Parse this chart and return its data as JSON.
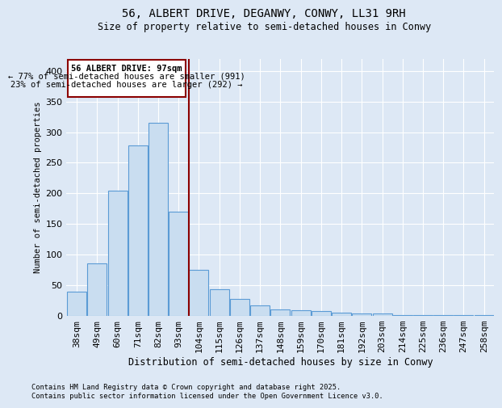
{
  "title1": "56, ALBERT DRIVE, DEGANWY, CONWY, LL31 9RH",
  "title2": "Size of property relative to semi-detached houses in Conwy",
  "xlabel": "Distribution of semi-detached houses by size in Conwy",
  "ylabel": "Number of semi-detached properties",
  "footnote1": "Contains HM Land Registry data © Crown copyright and database right 2025.",
  "footnote2": "Contains public sector information licensed under the Open Government Licence v3.0.",
  "annotation_title": "56 ALBERT DRIVE: 97sqm",
  "annotation_line1": "← 77% of semi-detached houses are smaller (991)",
  "annotation_line2": "23% of semi-detached houses are larger (292) →",
  "bar_labels": [
    "38sqm",
    "49sqm",
    "60sqm",
    "71sqm",
    "82sqm",
    "93sqm",
    "104sqm",
    "115sqm",
    "126sqm",
    "137sqm",
    "148sqm",
    "159sqm",
    "170sqm",
    "181sqm",
    "192sqm",
    "203sqm",
    "214sqm",
    "225sqm",
    "236sqm",
    "247sqm",
    "258sqm"
  ],
  "bar_values": [
    40,
    86,
    204,
    278,
    315,
    170,
    75,
    44,
    28,
    17,
    11,
    9,
    8,
    5,
    4,
    4,
    2,
    2,
    1,
    1,
    1
  ],
  "bar_color": "#c9ddf0",
  "bar_edge_color": "#5b9bd5",
  "vline_x": 5.5,
  "vline_color": "#8b0000",
  "annotation_box_color": "#8b0000",
  "ylim": [
    0,
    420
  ],
  "bg_color": "#dde8f5",
  "plot_bg_color": "#dde8f5",
  "fig_bg_color": "#dde8f5"
}
